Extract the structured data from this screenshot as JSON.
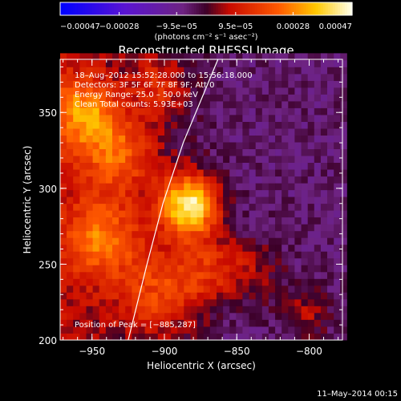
{
  "chart_data": {
    "type": "heatmap",
    "title": "Reconstructed RHESSI Image",
    "xlabel": "Heliocentric X (arcsec)",
    "ylabel": "Heliocentric Y (arcsec)",
    "xlim": [
      -972,
      -777
    ],
    "ylim": [
      200,
      385
    ],
    "x_ticks": [
      -950,
      -900,
      -850,
      -800
    ],
    "y_ticks": [
      200,
      250,
      300,
      350
    ],
    "x_tick_labels": [
      "−950",
      "−900",
      "−850",
      "−800"
    ],
    "y_tick_labels": [
      "200",
      "250",
      "300",
      "350"
    ],
    "colorbar": {
      "range": [
        -0.00047,
        0.00047
      ],
      "ticks": [
        -0.00047,
        -0.00028,
        -9.5e-05,
        9.5e-05,
        0.00028,
        0.00047
      ],
      "tick_labels": [
        "−0.00047",
        "−0.00028",
        "−9.5e−05",
        "9.5e−05",
        "0.00028",
        "0.00047"
      ],
      "units_text": "(photons cm⁻² s⁻¹ asec⁻²)"
    },
    "info_lines": [
      "18–Aug–2012 15:52:28.000 to 15:56:18.000",
      "Detectors: 3F 5F 6F 7F 8F 9F; Att 0",
      "Energy Range: 25.0 – 50.0 keV",
      "Clean    Total counts: 5.93E+03"
    ],
    "peak_text": "Position of Peak = [−885,287]",
    "peak": {
      "x": -885,
      "y": 287
    },
    "limb_arc": [
      [
        -925,
        200
      ],
      [
        -912,
        250
      ],
      [
        -901,
        290
      ],
      [
        -887,
        330
      ],
      [
        -863,
        385
      ]
    ],
    "sources": [
      {
        "x": -885,
        "y": 287,
        "sigma": 14,
        "amplitude": 1.0
      },
      {
        "x": -958,
        "y": 348,
        "sigma": 16,
        "amplitude": 0.55
      },
      {
        "x": -935,
        "y": 320,
        "sigma": 18,
        "amplitude": 0.45
      },
      {
        "x": -945,
        "y": 265,
        "sigma": 18,
        "amplitude": 0.5
      },
      {
        "x": -905,
        "y": 230,
        "sigma": 20,
        "amplitude": 0.4
      },
      {
        "x": -870,
        "y": 245,
        "sigma": 16,
        "amplitude": 0.35
      },
      {
        "x": -905,
        "y": 365,
        "sigma": 14,
        "amplitude": 0.3
      },
      {
        "x": -840,
        "y": 245,
        "sigma": 14,
        "amplitude": 0.2
      },
      {
        "x": -805,
        "y": 215,
        "sigma": 12,
        "amplitude": 0.25
      }
    ],
    "background": {
      "level": -0.12,
      "noise": 0.1
    }
  },
  "timestamp": "11–May–2014 00:15"
}
